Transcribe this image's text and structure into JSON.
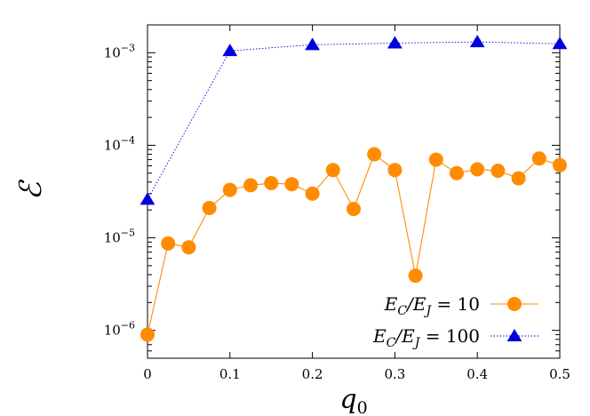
{
  "chart_data": {
    "type": "line",
    "xlabel": "q_0",
    "ylabel": "ℰ",
    "x_scale": "linear",
    "y_scale": "log",
    "xlim": [
      0,
      0.5
    ],
    "ylim": [
      5e-07,
      0.002
    ],
    "x_ticks": [
      {
        "value": 0,
        "label": "0"
      },
      {
        "value": 0.1,
        "label": "0.1"
      },
      {
        "value": 0.2,
        "label": "0.2"
      },
      {
        "value": 0.3,
        "label": "0.3"
      },
      {
        "value": 0.4,
        "label": "0.4"
      },
      {
        "value": 0.5,
        "label": "0.5"
      }
    ],
    "y_ticks": [
      {
        "value": 1e-06,
        "base": "10",
        "exp": "−6"
      },
      {
        "value": 1e-05,
        "base": "10",
        "exp": "−5"
      },
      {
        "value": 0.0001,
        "base": "10",
        "exp": "−4"
      },
      {
        "value": 0.001,
        "base": "10",
        "exp": "−3"
      }
    ],
    "grid": false,
    "legend_position": "bottom-right",
    "series": [
      {
        "name": "E_C/E_J = 10",
        "legend": {
          "lhs": "E",
          "lhs_sub": "C",
          "slash": "/",
          "rhs": "E",
          "rhs_sub": "J",
          "eq": " = 10"
        },
        "color": "#ff8c00",
        "marker": "circle",
        "line_style": "solid",
        "x": [
          0,
          0.025,
          0.05,
          0.075,
          0.1,
          0.125,
          0.15,
          0.175,
          0.2,
          0.225,
          0.25,
          0.275,
          0.3,
          0.325,
          0.35,
          0.375,
          0.4,
          0.425,
          0.45,
          0.475,
          0.5
        ],
        "y": [
          9e-07,
          8.7e-06,
          7.9e-06,
          2.1e-05,
          3.3e-05,
          3.7e-05,
          3.9e-05,
          3.8e-05,
          3e-05,
          5.4e-05,
          2.05e-05,
          8e-05,
          5.4e-05,
          3.9e-06,
          7e-05,
          5e-05,
          5.5e-05,
          5.3e-05,
          4.4e-05,
          7.2e-05,
          6.1e-05
        ]
      },
      {
        "name": "E_C/E_J = 100",
        "legend": {
          "lhs": "E",
          "lhs_sub": "C",
          "slash": "/",
          "rhs": "E",
          "rhs_sub": "J",
          "eq": " = 100"
        },
        "color": "#0000dd",
        "marker": "triangle",
        "line_style": "dotted",
        "x": [
          0,
          0.1,
          0.2,
          0.3,
          0.4,
          0.5
        ],
        "y": [
          2.6e-05,
          0.00105,
          0.00122,
          0.00127,
          0.00131,
          0.00125
        ]
      }
    ]
  }
}
